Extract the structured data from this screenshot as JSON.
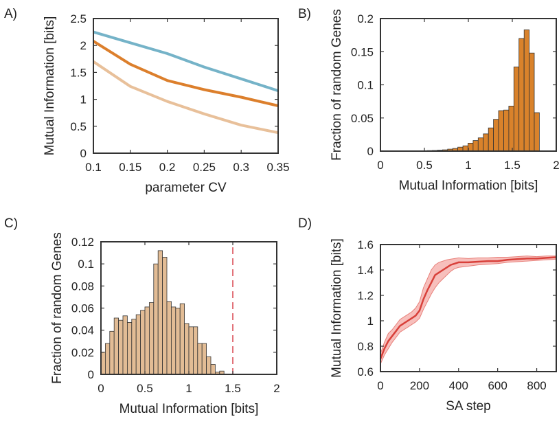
{
  "panel_labels": [
    "A)",
    "B)",
    "C)",
    "D)"
  ],
  "chart_data": [
    {
      "panel": "A)",
      "type": "line",
      "xlabel": "parameter CV",
      "ylabel": "Mutual Information [bits]",
      "xlim": [
        0.1,
        0.35
      ],
      "ylim": [
        0,
        2.5
      ],
      "xticks": [
        0.1,
        0.15,
        0.2,
        0.25,
        0.3,
        0.35
      ],
      "xtick_labels": [
        "0.1",
        "0.15",
        "0.2",
        "0.25",
        "0.3",
        "0.35"
      ],
      "yticks": [
        0,
        0.5,
        1,
        1.5,
        2,
        2.5
      ],
      "ytick_labels": [
        "0",
        "0.5",
        "1",
        "1.5",
        "2",
        "2.5"
      ],
      "x": [
        0.1,
        0.15,
        0.2,
        0.25,
        0.3,
        0.35
      ],
      "series": [
        {
          "color": "#75b3c8",
          "values": [
            2.25,
            2.05,
            1.85,
            1.6,
            1.38,
            1.16
          ]
        },
        {
          "color": "#dc7f2c",
          "values": [
            2.08,
            1.65,
            1.35,
            1.18,
            1.04,
            0.88
          ]
        },
        {
          "color": "#e8c09a",
          "values": [
            1.7,
            1.24,
            0.96,
            0.73,
            0.52,
            0.38
          ]
        }
      ]
    },
    {
      "panel": "B)",
      "type": "bar",
      "xlabel": "Mutual Information [bits]",
      "ylabel": "Fraction of random Genes",
      "xlim": [
        0,
        2
      ],
      "ylim": [
        0,
        0.2
      ],
      "xticks": [
        0,
        0.5,
        1,
        1.5,
        2
      ],
      "xtick_labels": [
        "0",
        "0.5",
        "1",
        "1.5",
        "2"
      ],
      "yticks": [
        0,
        0.05,
        0.1,
        0.15,
        0.2
      ],
      "ytick_labels": [
        "0",
        "0.05",
        "0.1",
        "0.15",
        "0.2"
      ],
      "bar_color": "#d9822b",
      "bin_width": 0.058,
      "bin_centers": [
        0.445,
        0.503,
        0.561,
        0.619,
        0.677,
        0.735,
        0.793,
        0.851,
        0.909,
        0.967,
        1.025,
        1.083,
        1.141,
        1.199,
        1.257,
        1.315,
        1.373,
        1.431,
        1.489,
        1.547,
        1.605,
        1.663,
        1.721,
        1.779
      ],
      "values": [
        0.0005,
        0.0005,
        0.0008,
        0.001,
        0.0015,
        0.002,
        0.003,
        0.004,
        0.006,
        0.008,
        0.012,
        0.016,
        0.02,
        0.026,
        0.035,
        0.048,
        0.061,
        0.062,
        0.068,
        0.127,
        0.17,
        0.183,
        0.148,
        0.058
      ]
    },
    {
      "panel": "C)",
      "type": "bar",
      "xlabel": "Mutual Information [bits]",
      "ylabel": "Fraction of random Genes",
      "xlim": [
        0,
        2
      ],
      "ylim": [
        0,
        0.12
      ],
      "xticks": [
        0,
        0.5,
        1,
        1.5,
        2
      ],
      "xtick_labels": [
        "0",
        "0.5",
        "1",
        "1.5",
        "2"
      ],
      "yticks": [
        0,
        0.02,
        0.04,
        0.06,
        0.08,
        0.1,
        0.12
      ],
      "ytick_labels": [
        "0",
        "0.02",
        "0.04",
        "0.06",
        "0.08",
        "0.1",
        "0.12"
      ],
      "bar_color": "#e2bc95",
      "bin_width": 0.05,
      "bin_centers": [
        0.025,
        0.075,
        0.125,
        0.175,
        0.225,
        0.275,
        0.325,
        0.375,
        0.425,
        0.475,
        0.525,
        0.575,
        0.625,
        0.675,
        0.725,
        0.775,
        0.825,
        0.875,
        0.925,
        0.975,
        1.025,
        1.075,
        1.125,
        1.175,
        1.225,
        1.275,
        1.325,
        1.375
      ],
      "values": [
        0.02,
        0.028,
        0.039,
        0.051,
        0.049,
        0.053,
        0.047,
        0.05,
        0.054,
        0.058,
        0.061,
        0.065,
        0.1,
        0.112,
        0.106,
        0.066,
        0.061,
        0.06,
        0.064,
        0.046,
        0.043,
        0.043,
        0.028,
        0.028,
        0.016,
        0.009,
        0.002,
        0.003
      ],
      "vline": {
        "x": 1.5,
        "color": "#d8454f",
        "dash": true
      }
    },
    {
      "panel": "D)",
      "type": "line",
      "xlabel": "SA step",
      "ylabel": "Mutual Information [bits]",
      "xlim": [
        0,
        900
      ],
      "ylim": [
        0.6,
        1.6
      ],
      "xticks": [
        0,
        200,
        400,
        600,
        800
      ],
      "xtick_labels": [
        "0",
        "200",
        "400",
        "600",
        "800"
      ],
      "yticks": [
        0.6,
        0.8,
        1,
        1.2,
        1.4,
        1.6
      ],
      "ytick_labels": [
        "0.6",
        "0.8",
        "1",
        "1.2",
        "1.4",
        "1.6"
      ],
      "line_color": "#d8403a",
      "band_color": "#f4aaa6",
      "x": [
        0,
        20,
        40,
        60,
        80,
        100,
        120,
        140,
        160,
        180,
        200,
        220,
        240,
        260,
        280,
        300,
        320,
        340,
        360,
        380,
        400,
        450,
        500,
        550,
        600,
        650,
        700,
        750,
        800,
        850,
        900
      ],
      "mean": [
        0.7,
        0.78,
        0.84,
        0.88,
        0.92,
        0.96,
        0.98,
        1.0,
        1.02,
        1.04,
        1.08,
        1.17,
        1.24,
        1.3,
        1.36,
        1.38,
        1.4,
        1.42,
        1.44,
        1.45,
        1.46,
        1.46,
        1.465,
        1.47,
        1.47,
        1.48,
        1.485,
        1.49,
        1.49,
        1.495,
        1.5
      ],
      "upper": [
        0.74,
        0.83,
        0.9,
        0.93,
        0.97,
        1.01,
        1.03,
        1.05,
        1.07,
        1.1,
        1.15,
        1.26,
        1.33,
        1.4,
        1.44,
        1.46,
        1.47,
        1.48,
        1.485,
        1.49,
        1.495,
        1.49,
        1.495,
        1.495,
        1.5,
        1.5,
        1.505,
        1.51,
        1.505,
        1.51,
        1.51
      ],
      "lower": [
        0.66,
        0.73,
        0.78,
        0.83,
        0.87,
        0.91,
        0.93,
        0.95,
        0.97,
        0.99,
        1.02,
        1.09,
        1.15,
        1.21,
        1.26,
        1.3,
        1.33,
        1.36,
        1.39,
        1.41,
        1.42,
        1.43,
        1.44,
        1.445,
        1.45,
        1.46,
        1.465,
        1.47,
        1.475,
        1.48,
        1.485
      ]
    }
  ]
}
